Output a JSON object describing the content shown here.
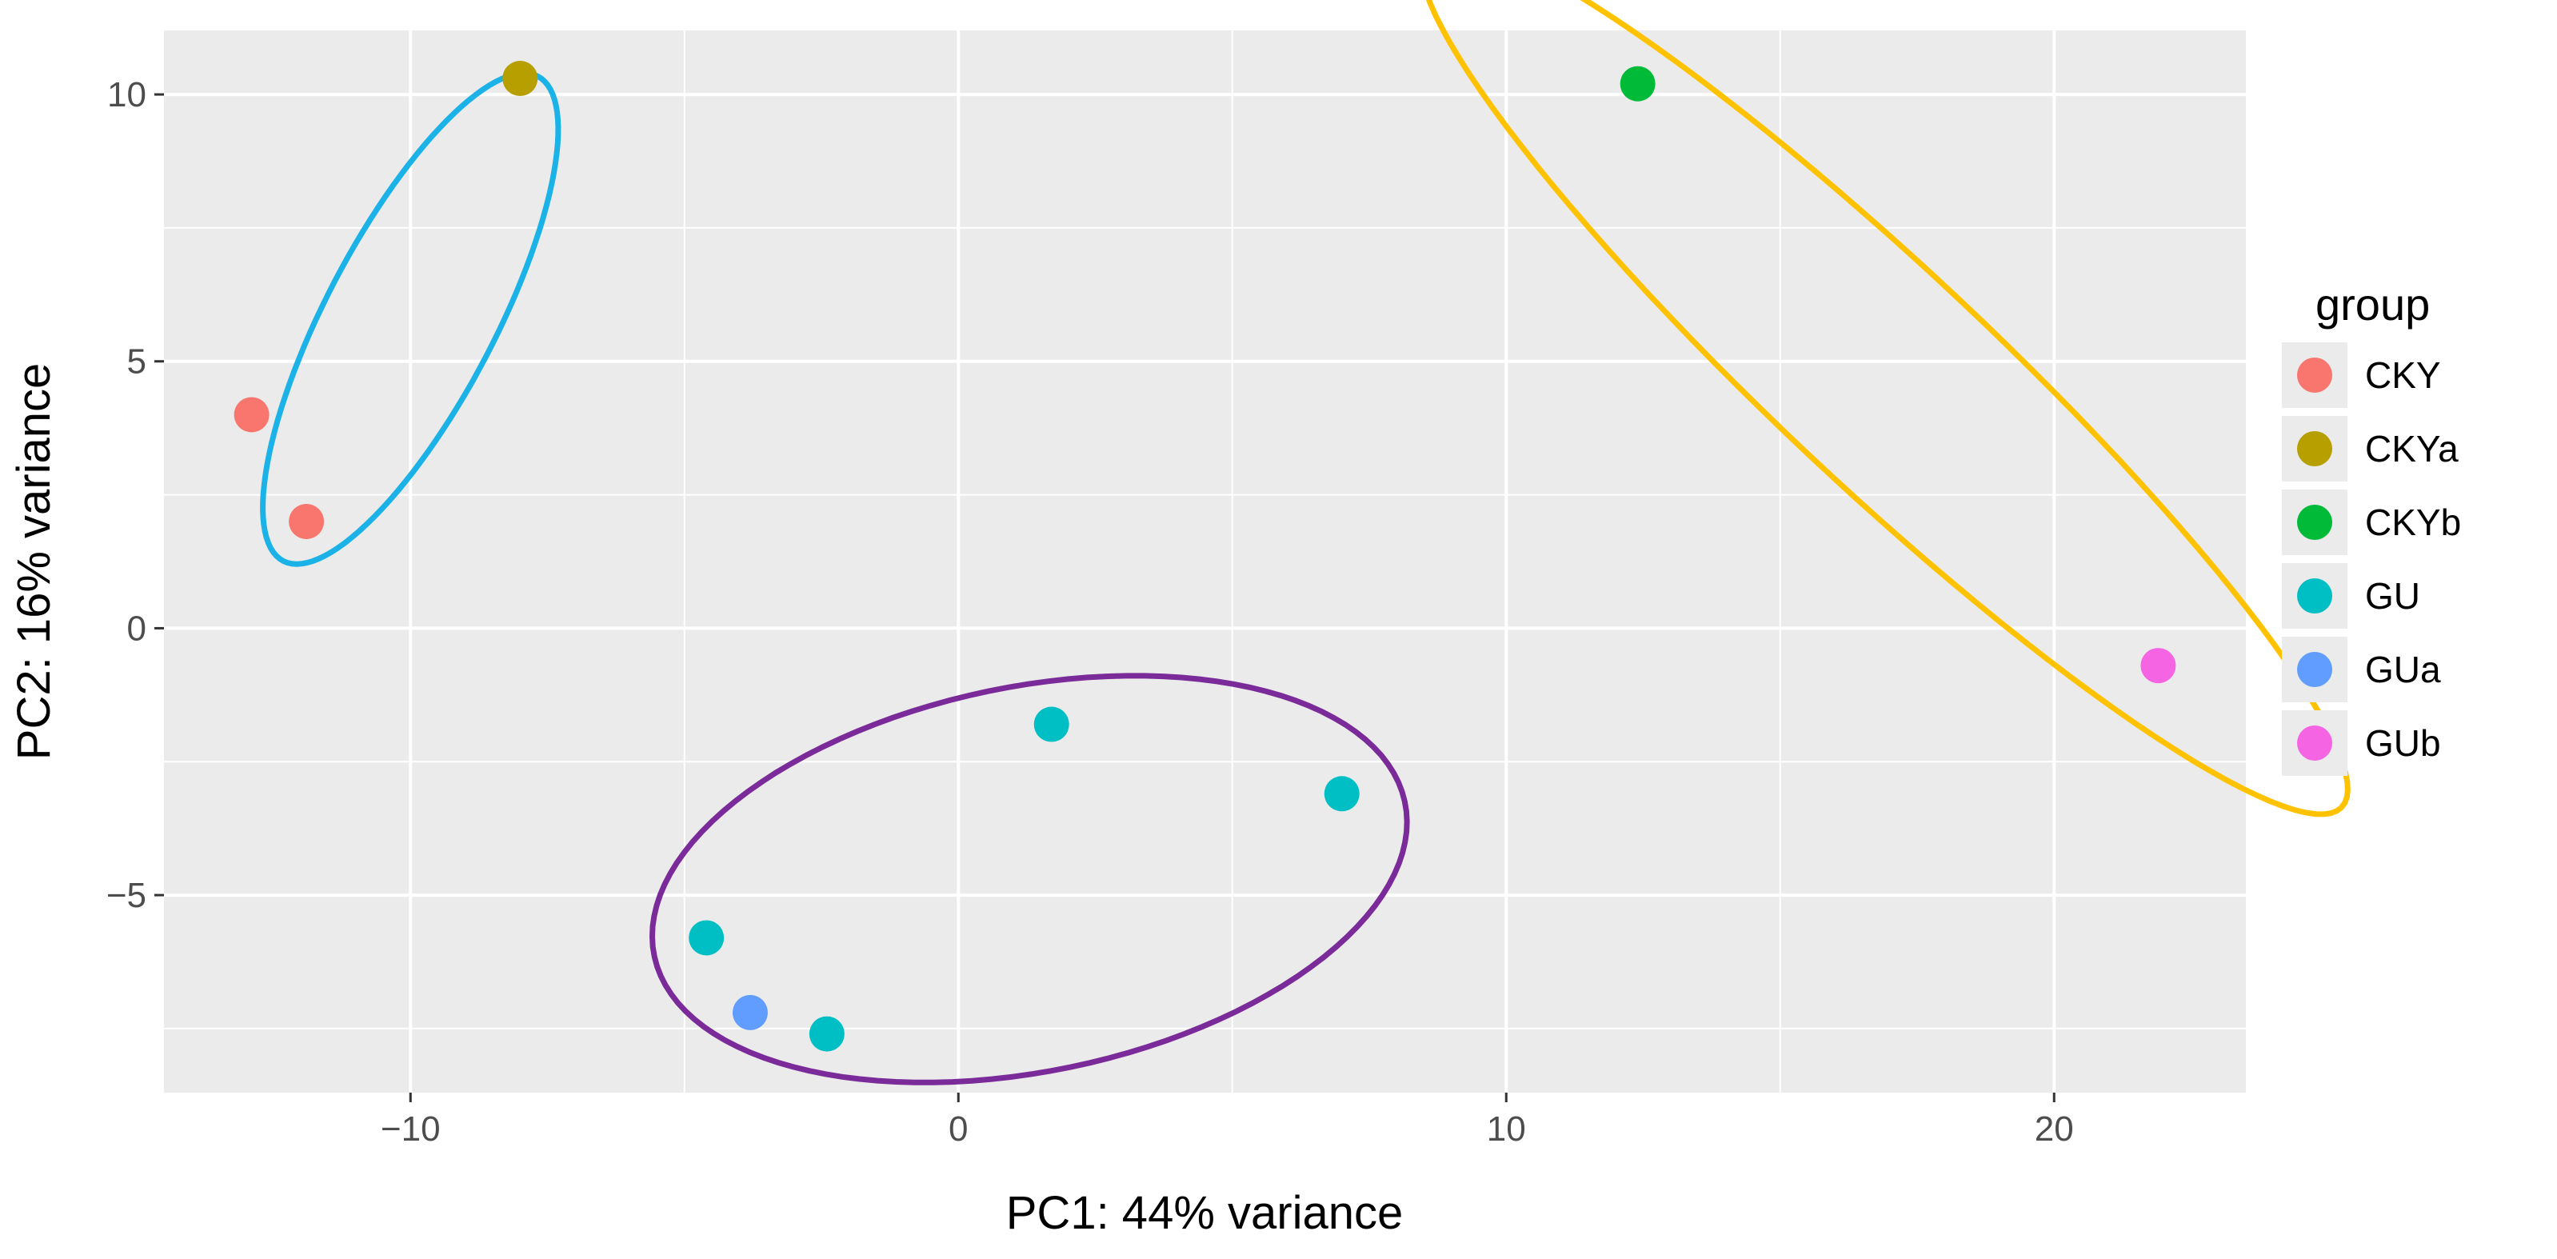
{
  "chart_data": {
    "type": "scatter",
    "title": "",
    "xlabel": "PC1: 44% variance",
    "ylabel": "PC2: 16% variance",
    "xlim": [
      -14.5,
      23.5
    ],
    "ylim": [
      -8.7,
      11.2
    ],
    "x_ticks": [
      -10,
      0,
      10,
      20
    ],
    "x_tick_labels": [
      "−10",
      "0",
      "10",
      "20"
    ],
    "y_ticks": [
      -5,
      0,
      5,
      10
    ],
    "y_tick_labels": [
      "−5",
      "0",
      "5",
      "10"
    ],
    "grid": true,
    "legend": {
      "title": "group",
      "position": "right",
      "entries": [
        {
          "name": "CKY",
          "color": "#F8766D"
        },
        {
          "name": "CKYa",
          "color": "#B79F00"
        },
        {
          "name": "CKYb",
          "color": "#00BA38"
        },
        {
          "name": "GU",
          "color": "#00BFC4"
        },
        {
          "name": "GUa",
          "color": "#619CFF"
        },
        {
          "name": "GUb",
          "color": "#F564E3"
        }
      ]
    },
    "series": [
      {
        "name": "CKY",
        "color": "#F8766D",
        "points": [
          {
            "x": -12.9,
            "y": 4.0
          },
          {
            "x": -11.9,
            "y": 2.0
          }
        ]
      },
      {
        "name": "CKYa",
        "color": "#B79F00",
        "points": [
          {
            "x": -8.0,
            "y": 10.3
          }
        ]
      },
      {
        "name": "CKYb",
        "color": "#00BA38",
        "points": [
          {
            "x": 12.4,
            "y": 10.2
          }
        ]
      },
      {
        "name": "GU",
        "color": "#00BFC4",
        "points": [
          {
            "x": 1.7,
            "y": -1.8
          },
          {
            "x": 7.0,
            "y": -3.1
          },
          {
            "x": -4.6,
            "y": -5.8
          },
          {
            "x": -2.4,
            "y": -7.6
          }
        ]
      },
      {
        "name": "GUa",
        "color": "#619CFF",
        "points": [
          {
            "x": -3.8,
            "y": -7.2
          }
        ]
      },
      {
        "name": "GUb",
        "color": "#F564E3",
        "points": [
          {
            "x": 21.9,
            "y": -0.7
          }
        ]
      }
    ],
    "annotations": [
      {
        "type": "ellipse",
        "color": "#1BB2E8",
        "center": {
          "x": -10.0,
          "y": 5.8
        },
        "semi_axes": [
          5.1,
          1.55
        ],
        "angle_deg": 63
      },
      {
        "type": "ellipse",
        "color": "#7B2A9A",
        "center": {
          "x": 1.3,
          "y": -4.7
        },
        "semi_axes": [
          7.0,
          3.6
        ],
        "angle_deg": 12
      },
      {
        "type": "ellipse",
        "color": "#FFC200",
        "center": {
          "x": 16.9,
          "y": 4.7
        },
        "semi_axes": [
          11.6,
          2.0
        ],
        "angle_deg": -44
      }
    ]
  }
}
